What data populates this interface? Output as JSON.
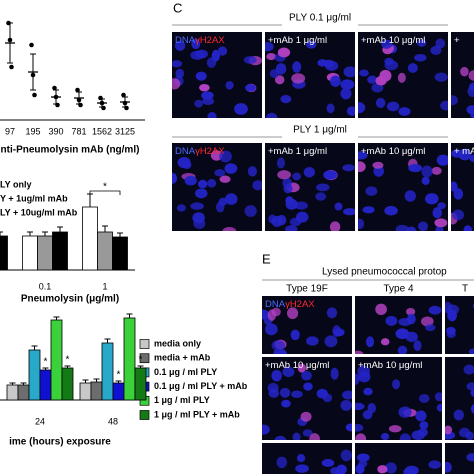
{
  "chart_data": [
    {
      "type": "dot",
      "xlabel": "nti-Pneumolysin mAb (ng/ml)",
      "categories": [
        "97",
        "195",
        "390",
        "781",
        "1562",
        "3125"
      ],
      "points": [
        [
          97,
          80,
          53
        ],
        [
          75,
          45,
          25
        ],
        [
          32,
          23,
          15
        ],
        [
          30,
          20,
          15
        ],
        [
          22,
          17,
          12
        ],
        [
          25,
          17,
          12
        ]
      ],
      "values": [
        77,
        48,
        23,
        22,
        17,
        18
      ],
      "errors": [
        20,
        18,
        7,
        6,
        4,
        5
      ],
      "ylim": [
        0,
        110
      ],
      "color": "#000000"
    },
    {
      "type": "bar",
      "xlabel": "Pneumolysin (μg/ml)",
      "categories": [
        null,
        "0.1",
        "1"
      ],
      "series": [
        {
          "name": "LY only",
          "color": "#ffffff",
          "values": [
            null,
            34,
            63
          ],
          "errors": [
            null,
            4,
            13
          ]
        },
        {
          "name": "Y + 1ug/ml mAb",
          "color": "#999999",
          "values": [
            null,
            34,
            38
          ],
          "errors": [
            null,
            4,
            6
          ]
        },
        {
          "name": "LY + 10ug/ml mAb",
          "color": "#000000",
          "values": [
            34,
            38,
            33
          ],
          "errors": [
            4,
            5,
            4
          ]
        }
      ],
      "ylim": [
        0,
        80
      ],
      "annotations": [
        "*"
      ]
    },
    {
      "type": "bar",
      "xlabel": "ime (hours) exposure",
      "categories": [
        "24",
        "48"
      ],
      "series": [
        {
          "name": "media only",
          "color": "#c8c8c8",
          "values": [
            15,
            17
          ],
          "errors": [
            2,
            3
          ]
        },
        {
          "name": "media + mAb",
          "color": "#6d6d6d",
          "values": [
            15,
            18
          ],
          "errors": [
            2,
            3
          ]
        },
        {
          "name": "0.1 μg / ml PLY",
          "color": "#29a9c9",
          "values": [
            50,
            57
          ],
          "errors": [
            4,
            4
          ]
        },
        {
          "name": "0.1 μg / ml PLY + mAb",
          "color": "#1010d0",
          "values": [
            30,
            17
          ],
          "errors": [
            2,
            2
          ]
        },
        {
          "name": "1 μg / ml PLY",
          "color": "#3ad13a",
          "values": [
            80,
            82
          ],
          "errors": [
            3,
            4
          ]
        },
        {
          "name": "1 μg / ml PLY + mAb",
          "color": "#157a15",
          "values": [
            32,
            32
          ],
          "errors": [
            2,
            2
          ]
        }
      ],
      "ylim": [
        0,
        90
      ],
      "markers": [
        {
          "series": 3,
          "category": 0,
          "text": "*"
        },
        {
          "series": 5,
          "category": 0,
          "text": "*"
        },
        {
          "series": 3,
          "category": 1,
          "text": "*"
        },
        {
          "series": 5,
          "category": 1,
          "text": "*"
        }
      ]
    }
  ],
  "panels": {
    "C": {
      "label": "C",
      "rows": [
        {
          "title": "PLY 0.1 μg/ml",
          "tiles": [
            {
              "labels": [
                "DNA",
                "γH2AX"
              ]
            },
            {
              "labels": [
                "+mAb 1 μg/ml"
              ]
            },
            {
              "labels": [
                "+mAb 10 μg/ml"
              ]
            },
            {
              "labels": [
                "+"
              ]
            }
          ]
        },
        {
          "title": "PLY 1 μg/ml",
          "tiles": [
            {
              "labels": [
                "DNA",
                "γH2AX"
              ]
            },
            {
              "labels": [
                "+mAb 1 μg/ml"
              ]
            },
            {
              "labels": [
                "+mAb 10 μg/ml"
              ]
            },
            {
              "labels": [
                "+ mA"
              ]
            }
          ]
        }
      ]
    },
    "E": {
      "label": "E",
      "title": "Lysed pneumococcal protop",
      "columns": [
        "Type 19F",
        "Type 4",
        "T"
      ],
      "rows": [
        {
          "tiles": [
            {
              "labels": [
                "DNA",
                "γH2AX"
              ]
            },
            {
              "labels": []
            },
            {
              "labels": []
            }
          ]
        },
        {
          "tiles": [
            {
              "labels": [
                "+mAb 10 μg/ml"
              ]
            },
            {
              "labels": [
                "+mAb 10 μg/ml"
              ]
            },
            {
              "labels": []
            }
          ]
        },
        {
          "tiles": [
            {
              "labels": []
            },
            {
              "labels": []
            },
            {
              "labels": []
            }
          ]
        }
      ]
    }
  }
}
